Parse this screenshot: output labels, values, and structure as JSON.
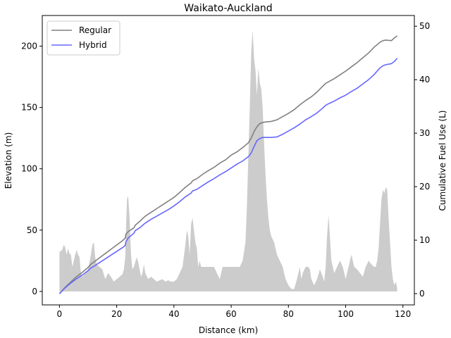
{
  "chart_data": {
    "type": "line",
    "title": "Waikato-Auckland",
    "xlabel": "Distance (km)",
    "ylabel_left": "Elevation (m)",
    "ylabel_right": "Cumulative Fuel Use (L)",
    "xlim": [
      -6,
      124
    ],
    "ylim_left": [
      -11,
      225
    ],
    "ylim_right": [
      -2.1,
      52
    ],
    "xticks": [
      0,
      20,
      40,
      60,
      80,
      100,
      120
    ],
    "yticks_left": [
      0,
      50,
      100,
      150,
      200
    ],
    "yticks_right": [
      0,
      10,
      20,
      30,
      40,
      50
    ],
    "legend_position": "upper left",
    "elevation": {
      "color": "#cccccc",
      "x": [
        0,
        0.5,
        1,
        1.5,
        2,
        2.5,
        3,
        3.5,
        4,
        4.5,
        5,
        5.5,
        6,
        6.5,
        7,
        7.5,
        8,
        9,
        10,
        11,
        11.5,
        12,
        12.5,
        13,
        14,
        15,
        16,
        17,
        18,
        19,
        20,
        21,
        22,
        22.5,
        23,
        23.3,
        23.6,
        24,
        24.5,
        25,
        25.5,
        26,
        27,
        27.5,
        28,
        28.5,
        29,
        29.5,
        30,
        31,
        32,
        33,
        34,
        35,
        36,
        37,
        38,
        39,
        40,
        41,
        42,
        43,
        44,
        44.5,
        45,
        45.5,
        46,
        46.5,
        47,
        47.5,
        48,
        48.5,
        49,
        49.5,
        50,
        51,
        52,
        53,
        54,
        55,
        56,
        57,
        57.5,
        58,
        59,
        60,
        61,
        62,
        63,
        64,
        65,
        65.5,
        66,
        66.5,
        67,
        67.5,
        68,
        68.5,
        69,
        69.5,
        70,
        70.5,
        71,
        71.5,
        72,
        72.5,
        73,
        73.5,
        74,
        75,
        76,
        77,
        78,
        79,
        80,
        81,
        82,
        83,
        84,
        84.5,
        85,
        86,
        87,
        87.5,
        88,
        89,
        90,
        91,
        92,
        92.5,
        93,
        93.5,
        94,
        94.5,
        95,
        96,
        97,
        98,
        99,
        99.5,
        100,
        101,
        102,
        103,
        104,
        105,
        106,
        107,
        108,
        109,
        110,
        110.5,
        111,
        111.5,
        112,
        112.5,
        113,
        113.5,
        114,
        114.5,
        115,
        115.5,
        116,
        116.5,
        117,
        117.5,
        118
      ],
      "y": [
        32,
        33,
        34,
        38,
        36,
        30,
        35,
        31,
        30,
        20,
        25,
        30,
        34,
        30,
        28,
        15,
        12,
        15,
        18,
        30,
        38,
        40,
        28,
        22,
        20,
        18,
        10,
        15,
        12,
        8,
        10,
        12,
        14,
        18,
        28,
        55,
        75,
        78,
        60,
        30,
        18,
        20,
        28,
        24,
        18,
        12,
        15,
        22,
        15,
        10,
        12,
        10,
        8,
        9,
        10,
        8,
        9,
        8,
        8,
        10,
        15,
        20,
        38,
        50,
        45,
        30,
        55,
        60,
        50,
        40,
        35,
        20,
        25,
        20,
        20,
        20,
        20,
        20,
        20,
        15,
        10,
        20,
        20,
        20,
        20,
        20,
        20,
        20,
        20,
        25,
        40,
        70,
        110,
        150,
        195,
        213,
        190,
        180,
        160,
        182,
        170,
        165,
        150,
        120,
        95,
        75,
        60,
        50,
        45,
        40,
        30,
        25,
        20,
        10,
        5,
        2,
        2,
        10,
        20,
        10,
        15,
        20,
        20,
        18,
        10,
        5,
        10,
        18,
        12,
        8,
        20,
        45,
        62,
        45,
        25,
        15,
        20,
        25,
        20,
        15,
        10,
        20,
        30,
        20,
        18,
        15,
        12,
        20,
        25,
        22,
        20,
        20,
        25,
        35,
        55,
        75,
        83,
        80,
        85,
        83,
        60,
        40,
        20,
        10,
        5,
        8,
        3
      ]
    },
    "series": [
      {
        "name": "Regular",
        "color": "#808080",
        "x": [
          0,
          2,
          4,
          6,
          8,
          10,
          11,
          12,
          14,
          16,
          18,
          20,
          22,
          23,
          23.2,
          24,
          26,
          26.5,
          28,
          30,
          32,
          34,
          36,
          38,
          40,
          42,
          44,
          46,
          46.5,
          48,
          50,
          52,
          54,
          56,
          58,
          60,
          62,
          64,
          66,
          67,
          68,
          69,
          70,
          71,
          72,
          74,
          76,
          78,
          80,
          82,
          84,
          86,
          88,
          90,
          92,
          93,
          94,
          96,
          98,
          100,
          102,
          104,
          106,
          108,
          110,
          112,
          113,
          114,
          116,
          117,
          118
        ],
        "y": [
          0,
          1.2,
          2.2,
          3.2,
          4.0,
          4.9,
          5.5,
          5.9,
          6.7,
          7.5,
          8.3,
          9.1,
          9.9,
          10.4,
          11.1,
          11.6,
          12.3,
          12.8,
          13.5,
          14.5,
          15.2,
          15.9,
          16.6,
          17.3,
          18.0,
          18.9,
          19.9,
          20.7,
          21.1,
          21.5,
          22.3,
          23.0,
          23.6,
          24.4,
          25.0,
          25.9,
          26.5,
          27.3,
          28.2,
          29.1,
          30.3,
          31.2,
          31.8,
          32.0,
          32.1,
          32.2,
          32.5,
          33.1,
          33.7,
          34.4,
          35.3,
          36.1,
          36.8,
          37.7,
          38.8,
          39.3,
          39.6,
          40.2,
          40.9,
          41.6,
          42.4,
          43.2,
          44.1,
          45.0,
          46.1,
          47.0,
          47.3,
          47.4,
          47.3,
          47.8,
          48.2
        ]
      },
      {
        "name": "Hybrid",
        "color": "#6666ff",
        "x": [
          0,
          2,
          4,
          6,
          8,
          10,
          11,
          12,
          14,
          16,
          18,
          20,
          22,
          23,
          23.2,
          24,
          26,
          26.5,
          28,
          30,
          32,
          34,
          36,
          38,
          40,
          42,
          44,
          46,
          46.5,
          48,
          50,
          52,
          54,
          56,
          58,
          60,
          62,
          64,
          66,
          67,
          68,
          69,
          70,
          71,
          72,
          74,
          76,
          78,
          80,
          82,
          84,
          86,
          88,
          90,
          92,
          93,
          94,
          96,
          98,
          100,
          102,
          104,
          106,
          108,
          110,
          112,
          113,
          114,
          116,
          117,
          118
        ],
        "y": [
          0,
          1.1,
          2.0,
          2.8,
          3.5,
          4.3,
          4.8,
          5.1,
          5.8,
          6.5,
          7.2,
          7.9,
          8.6,
          9.0,
          9.7,
          10.4,
          11.3,
          11.8,
          12.3,
          13.2,
          13.9,
          14.5,
          15.1,
          15.7,
          16.4,
          17.2,
          18.1,
          18.8,
          19.2,
          19.5,
          20.2,
          20.9,
          21.5,
          22.2,
          22.8,
          23.5,
          24.2,
          24.8,
          25.6,
          26.3,
          27.5,
          28.6,
          29.0,
          29.2,
          29.2,
          29.2,
          29.3,
          29.8,
          30.4,
          31.0,
          31.7,
          32.5,
          33.1,
          33.8,
          34.7,
          35.2,
          35.5,
          36.0,
          36.6,
          37.1,
          37.8,
          38.4,
          39.2,
          40.0,
          41.0,
          42.2,
          42.6,
          42.8,
          43.0,
          43.4,
          44.0
        ]
      }
    ]
  }
}
